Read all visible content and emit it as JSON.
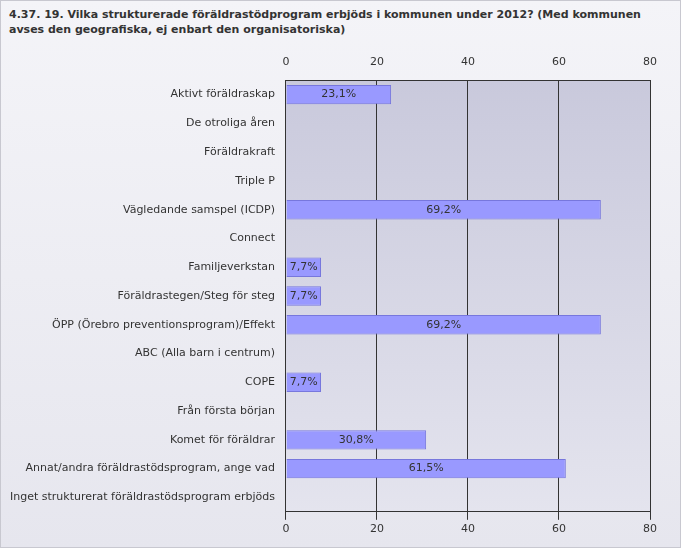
{
  "chart_data": {
    "type": "bar",
    "title": "4.37. 19. Vilka strukturerade föräldrastödprogram erbjöds i kommunen under 2012? (Med kommunen avses den geografiska, ej enbart den organisatoriska)",
    "orientation": "horizontal",
    "categories": [
      "Aktivt föräldraskap",
      "De otroliga åren",
      "Föräldrakraft",
      "Triple P",
      "Vägledande samspel (ICDP)",
      "Connect",
      "Familjeverkstan",
      "Föräldrastegen/Steg för steg",
      "ÖPP (Örebro preventionsprogram)/Effekt",
      "ABC (Alla barn i centrum)",
      "COPE",
      "Från första början",
      "Komet för föräldrar",
      "Annat/andra föräldrastödsprogram, ange vad",
      "Inget strukturerat föräldrastödsprogram erbjöds"
    ],
    "values": [
      23.1,
      null,
      null,
      null,
      69.2,
      null,
      7.7,
      7.7,
      69.2,
      null,
      7.7,
      null,
      30.8,
      61.5,
      null
    ],
    "value_labels": [
      "23,1%",
      null,
      null,
      null,
      "69,2%",
      null,
      "7,7%",
      "7,7%",
      "69,2%",
      null,
      "7,7%",
      null,
      "30,8%",
      "61,5%",
      null
    ],
    "data_labels": true,
    "color": "#9999ff",
    "xlim": [
      0,
      80
    ],
    "xticks": [
      0,
      20,
      40,
      60,
      80
    ],
    "grid": true
  }
}
